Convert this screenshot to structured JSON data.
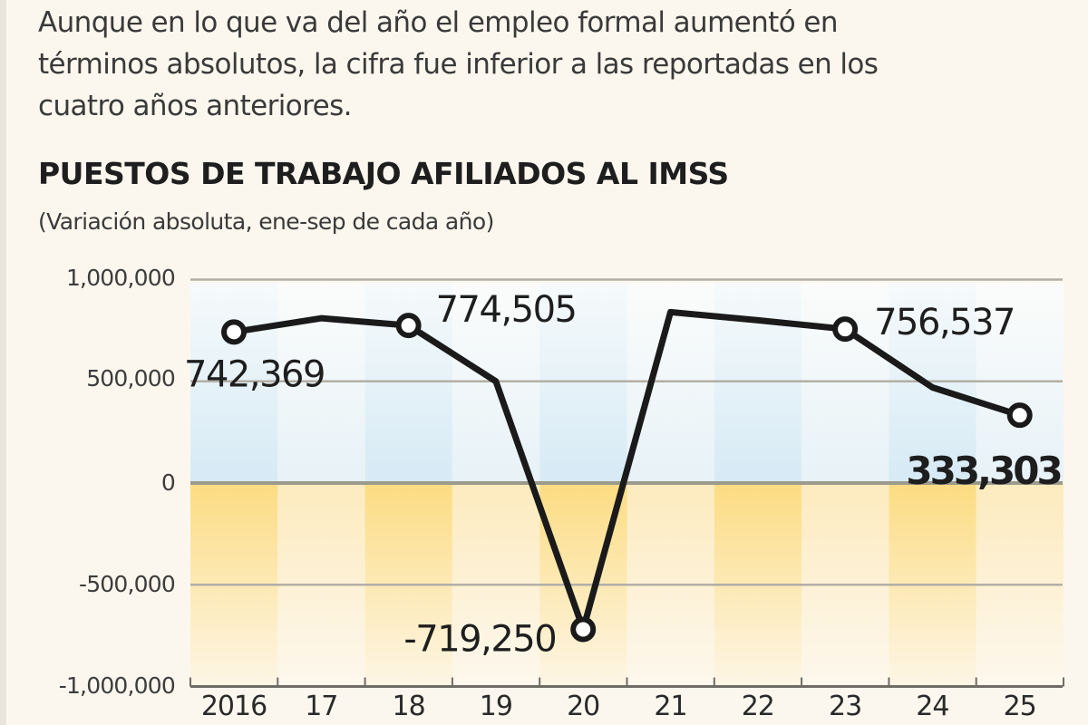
{
  "intro_text": "Aunque en lo que va del año el empleo formal aumentó en términos absolutos, la cifra fue inferior a las reportadas en los cuatro años anteriores.",
  "intro_lines": [
    "Aunque en lo que va del año el empleo formal aumentó en",
    "términos absolutos, la cifra fue inferior a las reportadas en los",
    "cuatro años anteriores."
  ],
  "colors": {
    "background": "#fcf7ee",
    "positive_band": "#dcedf6",
    "negative_band": "#fbe3a3",
    "line": "#1a1a1a",
    "gridline": "#a8a49a"
  },
  "chart_data": {
    "type": "line",
    "title": "PUESTOS DE TRABAJO AFILIADOS AL IMSS",
    "subtitle": "(Variación absoluta, ene-sep de cada año)",
    "xlabel": "",
    "ylabel": "",
    "categories": [
      "2016",
      "17",
      "18",
      "19",
      "20",
      "21",
      "22",
      "23",
      "24",
      "25"
    ],
    "series": [
      {
        "name": "Variación absoluta ene-sep",
        "values": [
          742369,
          810000,
          774505,
          500000,
          -719250,
          840000,
          800000,
          756537,
          470000,
          333303
        ]
      }
    ],
    "labeled_points": [
      {
        "category": "2016",
        "value": 742369,
        "label": "742,369"
      },
      {
        "category": "18",
        "value": 774505,
        "label": "774,505"
      },
      {
        "category": "20",
        "value": -719250,
        "label": "-719,250"
      },
      {
        "category": "23",
        "value": 756537,
        "label": "756,537"
      },
      {
        "category": "25",
        "value": 333303,
        "label": "333,303"
      }
    ],
    "yticks": [
      1000000,
      500000,
      0,
      -500000,
      -1000000
    ],
    "ytick_labels": [
      "1,000,000",
      "500,000",
      "0",
      "-500,000",
      "-1,000,000"
    ],
    "ylim": [
      -1000000,
      1000000
    ],
    "grid": true,
    "legend": "none"
  }
}
